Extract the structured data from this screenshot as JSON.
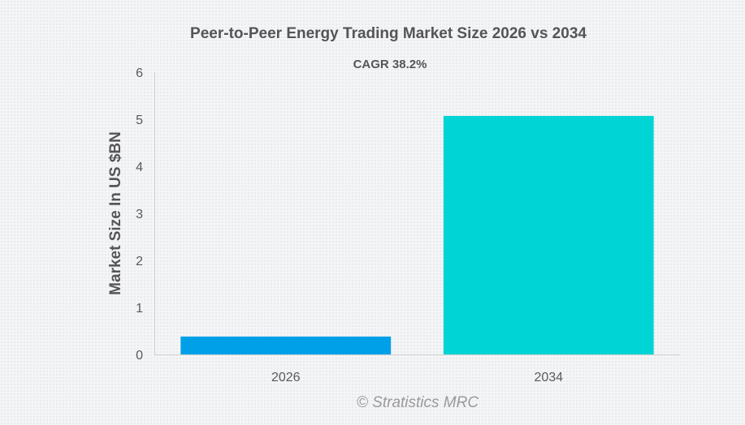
{
  "chart_data": {
    "type": "bar",
    "title": "Peer-to-Peer Energy Trading Market Size 2026 vs 2034",
    "subtitle": "CAGR 38.2%",
    "xlabel": "",
    "ylabel": "Market Size In US $BN",
    "categories": [
      "2026",
      "2034"
    ],
    "values": [
      0.38,
      5.07
    ],
    "colors": [
      "#00a0e9",
      "#00d4d4"
    ],
    "ylim": [
      0,
      6
    ],
    "yticks": [
      0,
      1,
      2,
      3,
      4,
      5,
      6
    ],
    "grid": false,
    "legend": "none",
    "credit": "© Stratistics MRC"
  }
}
